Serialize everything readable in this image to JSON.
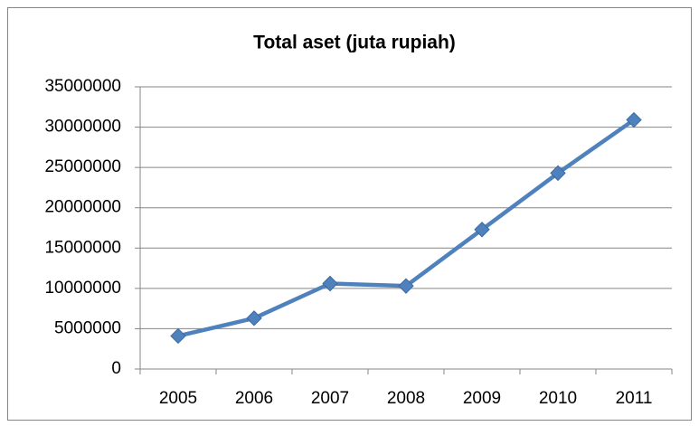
{
  "chart_data": {
    "type": "line",
    "title": "Total aset (juta rupiah)",
    "categories": [
      "2005",
      "2006",
      "2007",
      "2008",
      "2009",
      "2010",
      "2011"
    ],
    "series": [
      {
        "name": "Total aset",
        "color": "#4f81bd",
        "values": [
          4100000,
          6300000,
          10600000,
          10300000,
          17300000,
          24300000,
          30900000
        ]
      }
    ],
    "ylim": [
      0,
      35000000
    ],
    "yticks": [
      0,
      5000000,
      10000000,
      15000000,
      20000000,
      25000000,
      30000000,
      35000000
    ],
    "grid": true,
    "legend": false
  }
}
